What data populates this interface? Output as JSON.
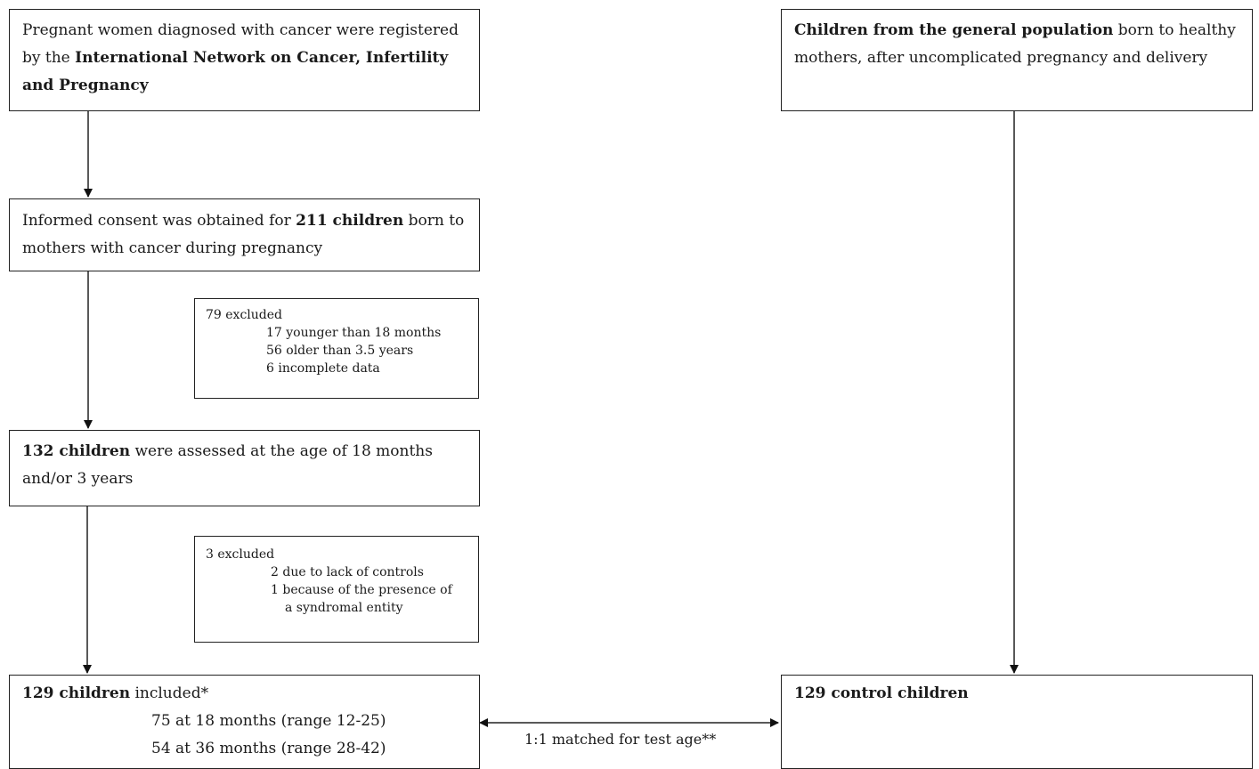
{
  "box_registered": {
    "pre": "Pregnant women diagnosed with cancer were registered by the ",
    "bold": "International Network on Cancer, Infertility and Pregnancy"
  },
  "box_general_population": {
    "bold": "Children from the general population",
    "post": " born to healthy mothers, after uncomplicated pregnancy and delivery"
  },
  "box_consent": {
    "pre": "Informed consent was obtained for ",
    "bold": "211 children",
    "post": " born to mothers with cancer during pregnancy"
  },
  "box_exclusion1": {
    "header": "79 excluded",
    "items": [
      "17 younger than 18 months",
      "56 older than 3.5 years",
      "6 incomplete data"
    ]
  },
  "box_assessed": {
    "bold": "132 children",
    "post": " were assessed at the age of 18 months and/or 3 years"
  },
  "box_exclusion2": {
    "header": "3 excluded",
    "items": [
      "2 due to lack of controls",
      "1 because of the presence of",
      "a syndromal entity"
    ]
  },
  "box_included": {
    "bold": "129 children",
    "post": " included*",
    "lines": [
      "75 at 18 months (range 12-25)",
      "54 at 36 months (range 28-42)"
    ]
  },
  "box_controls": {
    "bold": "129 control children"
  },
  "match_label": "1:1 matched for test age**"
}
